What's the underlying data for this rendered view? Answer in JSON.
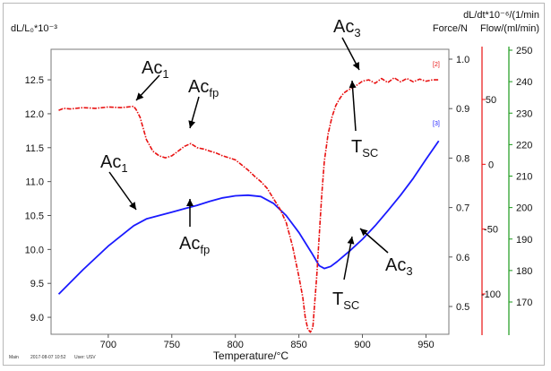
{
  "chart_data": {
    "type": "line",
    "xlabel": "Temperature/°C",
    "ylabel_left": "dL/L₀*10⁻³",
    "ylabel_right_top": "dL/dt*10⁻⁶/(1/min",
    "ylabel_right_force": "Force/N",
    "ylabel_right_flow": "Flow/(ml/min)",
    "xlim": [
      655,
      968
    ],
    "ylim": [
      8.75,
      12.95
    ],
    "x_ticks": [
      700,
      750,
      800,
      850,
      900,
      950
    ],
    "y_ticks": [
      9.0,
      9.5,
      10.0,
      10.5,
      11.0,
      11.5,
      12.0,
      12.5
    ],
    "y_tick_labels": [
      "9.0",
      "9.5",
      "10.0",
      "10.5",
      "11.0",
      "11.5",
      "12.0",
      "12.5"
    ],
    "dldt_ticks": [
      {
        "v": 0.5,
        "label": "0.5"
      },
      {
        "v": 0.6,
        "label": "0.6"
      },
      {
        "v": 0.7,
        "label": "0.7"
      },
      {
        "v": 0.8,
        "label": "0.8"
      },
      {
        "v": 0.9,
        "label": "0.9"
      },
      {
        "v": 1.0,
        "label": "1.0"
      }
    ],
    "dldt_map": {
      "v0": 0.5,
      "y0": 342,
      "v1": 1.0,
      "y1": 66
    },
    "force_ticks": [
      {
        "v": 50,
        "label": "50"
      },
      {
        "v": 0,
        "label": "0"
      },
      {
        "v": -50,
        "label": "-50"
      },
      {
        "v": -100,
        "label": "-100"
      }
    ],
    "force_map": {
      "v0": 50,
      "y0": 111,
      "v1": -100,
      "y1": 328
    },
    "flow_ticks": [
      {
        "v": 170,
        "label": "170"
      },
      {
        "v": 180,
        "label": "180"
      },
      {
        "v": 190,
        "label": "190"
      },
      {
        "v": 200,
        "label": "200"
      },
      {
        "v": 210,
        "label": "210"
      },
      {
        "v": 220,
        "label": "220"
      },
      {
        "v": 230,
        "label": "230"
      },
      {
        "v": 240,
        "label": "240"
      },
      {
        "v": 250,
        "label": "250"
      }
    ],
    "flow_map": {
      "v0": 250,
      "y0": 56,
      "v1": 170,
      "y1": 337
    },
    "colors": {
      "dilatation": "#1a1aff",
      "derivative": "#e81010",
      "force_axis": "#e81010",
      "flow_axis": "#1a9a1a"
    },
    "series": [
      {
        "key": "dilatation",
        "x": [
          661,
          680,
          700,
          720,
          730,
          740,
          750,
          760,
          770,
          780,
          790,
          800,
          810,
          820,
          830,
          840,
          850,
          860,
          866,
          870,
          875,
          880,
          890,
          900,
          910,
          920,
          930,
          940,
          950,
          960
        ],
        "y": [
          9.34,
          9.7,
          10.05,
          10.35,
          10.45,
          10.5,
          10.55,
          10.6,
          10.65,
          10.71,
          10.76,
          10.79,
          10.8,
          10.78,
          10.68,
          10.5,
          10.25,
          9.95,
          9.76,
          9.72,
          9.75,
          9.82,
          9.98,
          10.15,
          10.35,
          10.57,
          10.8,
          11.05,
          11.33,
          11.6
        ]
      },
      {
        "key": "derivative",
        "x": [
          661,
          665,
          670,
          680,
          690,
          700,
          710,
          715,
          720,
          722,
          725,
          730,
          735,
          740,
          745,
          750,
          755,
          760,
          765,
          770,
          775,
          780,
          785,
          790,
          795,
          800,
          810,
          815,
          820,
          825,
          830,
          835,
          840,
          845,
          850,
          853,
          855,
          857,
          859,
          861,
          862,
          864,
          866,
          868,
          870,
          873,
          876,
          879,
          882,
          885,
          888,
          891,
          894,
          897,
          900,
          905,
          910,
          915,
          920,
          925,
          930,
          935,
          940,
          945,
          950,
          955,
          960
        ],
        "y": [
          12.05,
          12.08,
          12.07,
          12.09,
          12.08,
          12.1,
          12.09,
          12.1,
          12.11,
          12.06,
          11.95,
          11.62,
          11.45,
          11.38,
          11.35,
          11.38,
          11.45,
          11.52,
          11.56,
          11.5,
          11.48,
          11.45,
          11.42,
          11.38,
          11.35,
          11.32,
          11.17,
          11.08,
          11.0,
          10.9,
          10.75,
          10.6,
          10.4,
          10.05,
          9.6,
          9.3,
          9.0,
          8.83,
          8.78,
          8.85,
          9.1,
          9.6,
          10.2,
          10.8,
          11.3,
          11.7,
          11.95,
          12.12,
          12.22,
          12.3,
          12.34,
          12.37,
          12.4,
          12.44,
          12.48,
          12.5,
          12.45,
          12.52,
          12.46,
          12.53,
          12.47,
          12.52,
          12.47,
          12.51,
          12.48,
          12.5,
          12.5
        ]
      }
    ],
    "annotations": [
      {
        "text": "Ac",
        "sub": "1"
      },
      {
        "text": "Ac",
        "sub": "fp"
      },
      {
        "text": "Ac",
        "sub": "3"
      },
      {
        "text": "T",
        "sub": "SC"
      },
      {
        "text": "Ac",
        "sub": "1"
      },
      {
        "text": "Ac",
        "sub": "fp"
      },
      {
        "text": "T",
        "sub": "SC"
      },
      {
        "text": "Ac",
        "sub": "3"
      }
    ],
    "end_markers": [
      "[2]",
      "[3]"
    ],
    "grid": false,
    "legend": "none"
  },
  "footer": {
    "left": "Main",
    "date": "2017-08-07 10:52",
    "user": "User: USV"
  }
}
